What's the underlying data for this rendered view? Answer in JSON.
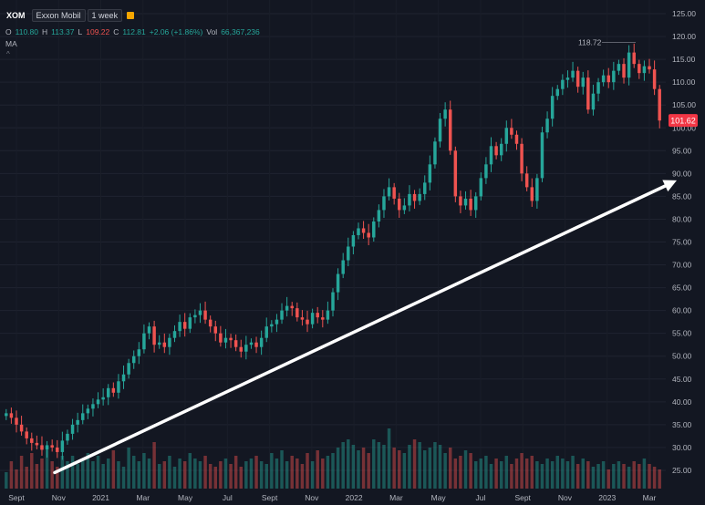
{
  "header": {
    "symbol": "XOM",
    "name": "Exxon Mobil",
    "interval": "1 week",
    "ohlc": {
      "o_label": "O",
      "o": "110.80",
      "h_label": "H",
      "h": "113.37",
      "l_label": "L",
      "l": "109.22",
      "c_label": "C",
      "c": "112.81",
      "chg": "+2.06 (+1.86%)",
      "vol_label": "Vol",
      "vol": "66,367,236"
    },
    "indicator": "MA",
    "caret": "^"
  },
  "colors": {
    "background": "#131722",
    "up": "#26a69a",
    "down": "#ef5350",
    "price_tag": "#f23645",
    "arrow": "#ffffff"
  },
  "chart_data": {
    "type": "candlestick",
    "ylim": [
      21,
      128
    ],
    "y_ticks": [
      "125.00",
      "120.00",
      "115.00",
      "110.00",
      "105.00",
      "100.00",
      "95.00",
      "90.00",
      "85.00",
      "80.00",
      "75.00",
      "70.00",
      "65.00",
      "60.00",
      "55.00",
      "50.00",
      "45.00",
      "40.00",
      "35.00",
      "30.00",
      "25.00"
    ],
    "x_ticks": [
      "Sept",
      "Nov",
      "2021",
      "Mar",
      "May",
      "Jul",
      "Sept",
      "Nov",
      "2022",
      "Mar",
      "May",
      "Jul",
      "Sept",
      "Nov",
      "2023",
      "Mar"
    ],
    "last_price": "101.62",
    "high_marker": "118.72",
    "trend_arrow": {
      "from": [
        "2020-11",
        24.5
      ],
      "to": [
        "2023-03",
        88.5
      ]
    },
    "price_path": [
      37.5,
      36.5,
      35.0,
      33.5,
      32.0,
      31.0,
      30.5,
      29.5,
      30.5,
      30.0,
      29.0,
      31.5,
      33.0,
      35.0,
      36.0,
      37.5,
      38.5,
      39.5,
      40.5,
      41.0,
      43.0,
      42.0,
      44.5,
      46.0,
      48.5,
      50.0,
      51.5,
      55.0,
      56.5,
      52.5,
      53.0,
      52.0,
      54.0,
      55.5,
      57.5,
      56.0,
      58.5,
      59.0,
      60.0,
      58.0,
      56.5,
      55.0,
      53.0,
      54.0,
      53.5,
      52.0,
      51.0,
      52.5,
      53.0,
      52.0,
      54.0,
      56.5,
      57.0,
      58.0,
      60.0,
      61.0,
      60.5,
      58.5,
      58.0,
      57.0,
      59.5,
      58.5,
      58.0,
      60.0,
      64.0,
      68.0,
      71.0,
      74.0,
      76.5,
      78.0,
      77.0,
      76.0,
      79.5,
      82.0,
      85.0,
      87.0,
      84.5,
      82.0,
      83.0,
      85.5,
      84.0,
      85.5,
      88.0,
      92.0,
      97.0,
      102.0,
      104.0,
      95.0,
      85.0,
      83.0,
      84.5,
      82.0,
      85.0,
      89.0,
      92.0,
      96.0,
      94.0,
      96.5,
      100.0,
      98.5,
      96.5,
      90.0,
      87.0,
      84.0,
      89.0,
      99.0,
      102.0,
      107.0,
      108.5,
      110.5,
      111.0,
      112.5,
      109.0,
      111.0,
      104.0,
      107.5,
      110.0,
      111.5,
      110.0,
      112.5,
      114.0,
      111.0,
      116.5,
      114.0,
      112.0,
      113.5,
      112.8,
      108.5,
      101.6
    ],
    "volume": [
      6,
      10,
      7,
      12,
      8,
      13,
      9,
      11,
      14,
      10,
      8,
      12,
      10,
      12,
      9,
      11,
      13,
      10,
      12,
      9,
      11,
      14,
      10,
      8,
      15,
      12,
      10,
      13,
      11,
      17,
      9,
      10,
      12,
      8,
      11,
      10,
      13,
      11,
      10,
      12,
      9,
      8,
      10,
      11,
      9,
      12,
      8,
      10,
      11,
      12,
      10,
      9,
      13,
      11,
      14,
      10,
      12,
      11,
      9,
      13,
      10,
      14,
      11,
      12,
      13,
      15,
      17,
      18,
      16,
      14,
      15,
      13,
      18,
      17,
      16,
      22,
      15,
      14,
      13,
      16,
      18,
      17,
      14,
      15,
      17,
      16,
      13,
      15,
      11,
      12,
      14,
      13,
      10,
      11,
      12,
      9,
      11,
      10,
      12,
      9,
      11,
      13,
      11,
      12,
      10,
      9,
      11,
      10,
      12,
      11,
      10,
      12,
      9,
      11,
      10,
      8,
      9,
      10,
      7,
      9,
      10,
      9,
      8,
      10,
      9,
      11,
      9,
      8,
      7
    ]
  }
}
